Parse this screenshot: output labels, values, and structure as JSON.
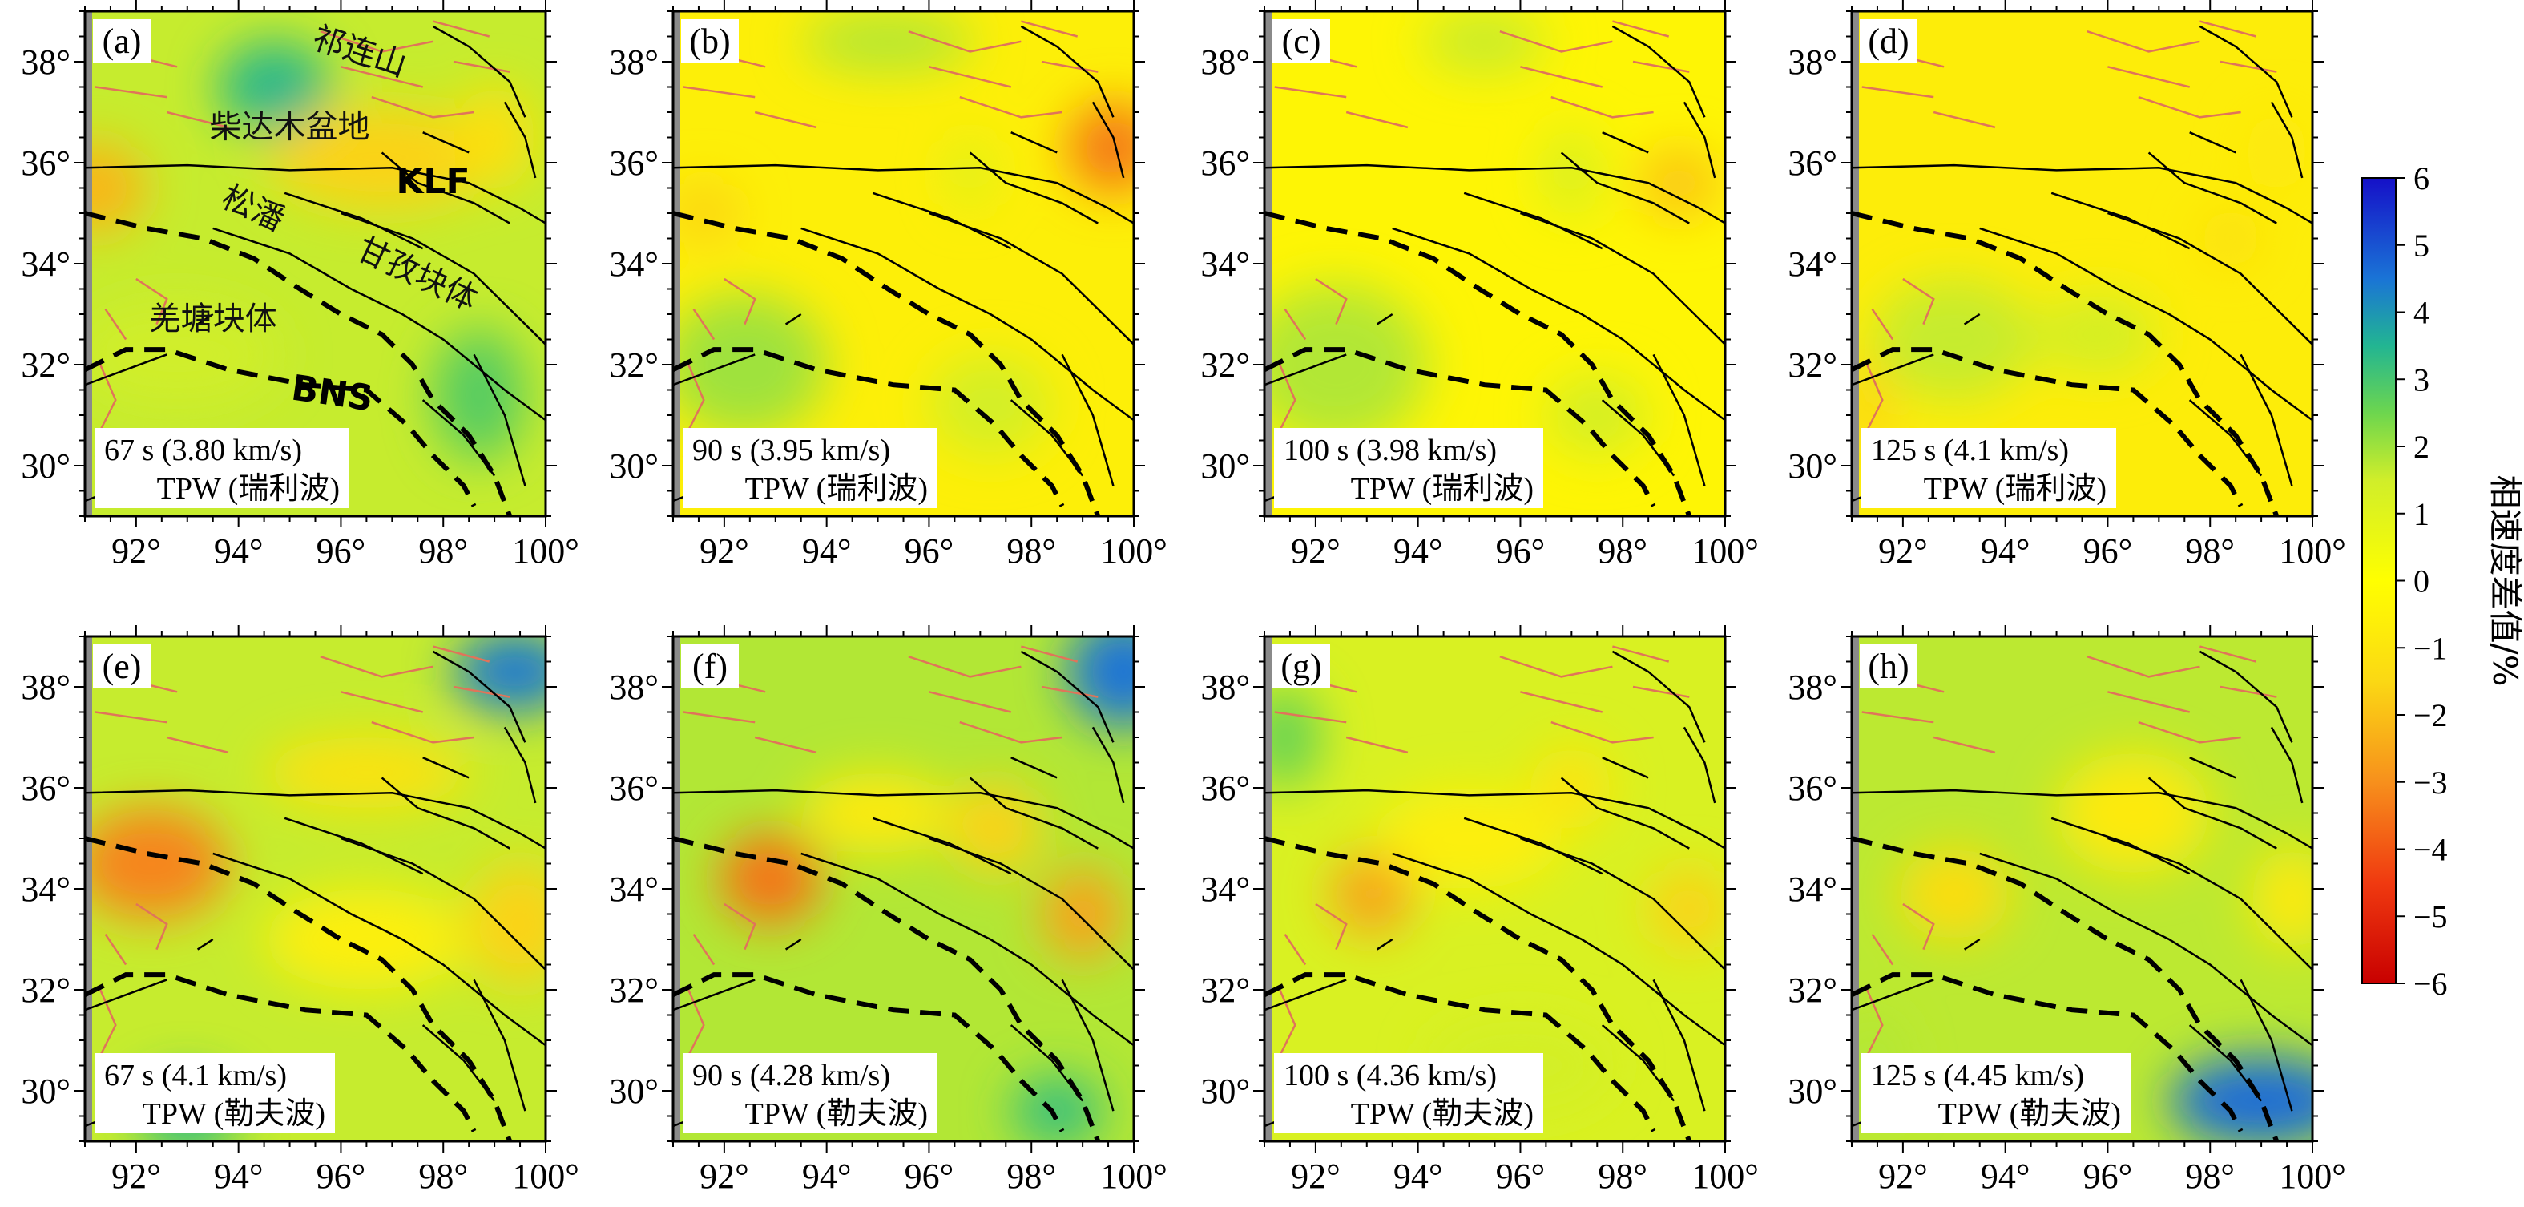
{
  "chart_data": {
    "type": "heatmap",
    "shared_axes": {
      "x_ticks": [
        "92°",
        "94°",
        "96°",
        "98°",
        "100°"
      ],
      "x_values": [
        92,
        94,
        96,
        98,
        100
      ],
      "y_ticks": [
        "30°",
        "32°",
        "34°",
        "36°",
        "38°"
      ],
      "y_values": [
        30,
        32,
        34,
        36,
        38
      ],
      "xlim": [
        91,
        100
      ],
      "ylim": [
        29,
        39
      ]
    },
    "colorbar": {
      "title": "相速度差值/%",
      "range": [
        -6,
        6
      ],
      "ticks": [
        "6",
        "5",
        "4",
        "3",
        "2",
        "1",
        "0",
        "−1",
        "−2",
        "−3",
        "−4",
        "−5",
        "−6"
      ],
      "colors": [
        {
          "v": -6,
          "c": "#c80000"
        },
        {
          "v": -4.5,
          "c": "#f03a10"
        },
        {
          "v": -3,
          "c": "#f7901c"
        },
        {
          "v": -1.5,
          "c": "#fbd814"
        },
        {
          "v": 0,
          "c": "#ffff00"
        },
        {
          "v": 1.5,
          "c": "#d0ee2a"
        },
        {
          "v": 2.5,
          "c": "#6dd64e"
        },
        {
          "v": 3.5,
          "c": "#22b592"
        },
        {
          "v": 4.5,
          "c": "#1a74d6"
        },
        {
          "v": 6,
          "c": "#1510c8"
        }
      ]
    },
    "map_labels": {
      "qilian": "祁连山",
      "qaidam": "柴达木盆地",
      "klf": "KLF",
      "songpan": "松潘",
      "ganzi": "甘孜块体",
      "qiangtang": "羌塘块体",
      "bns": "BNS"
    },
    "panels": [
      {
        "letter": "(a)",
        "period": "67 s (3.80 km/s)",
        "method": "TPW (瑞利波)",
        "background": 1.6,
        "anomalies": [
          [
            94.7,
            37.5,
            1.1,
            0.9,
            3.4
          ],
          [
            91.2,
            35.5,
            1.0,
            0.9,
            -2.2
          ],
          [
            98.7,
            31.4,
            0.9,
            1.3,
            2.8
          ],
          [
            92.8,
            32.2,
            2.0,
            1.0,
            1.5
          ],
          [
            96.8,
            36.1,
            2.2,
            1.0,
            -1.6
          ],
          [
            99.0,
            36.5,
            0.8,
            1.0,
            -1.2
          ]
        ]
      },
      {
        "letter": "(b)",
        "period": "90 s (3.95 km/s)",
        "method": "TPW (瑞利波)",
        "background": -0.6,
        "anomalies": [
          [
            99.6,
            36.3,
            0.9,
            0.9,
            -3.4
          ],
          [
            92.4,
            32.0,
            1.6,
            1.4,
            2.0
          ],
          [
            95.2,
            38.4,
            1.7,
            0.6,
            1.8
          ],
          [
            97.2,
            31.2,
            1.2,
            1.0,
            1.4
          ],
          [
            91.6,
            35.0,
            0.7,
            0.6,
            -1.6
          ],
          [
            96.8,
            35.8,
            0.4,
            0.7,
            1.2
          ]
        ]
      },
      {
        "letter": "(c)",
        "period": "100 s (3.98 km/s)",
        "method": "TPW (瑞利波)",
        "background": -0.4,
        "anomalies": [
          [
            99.1,
            35.6,
            0.8,
            0.7,
            -1.9
          ],
          [
            92.4,
            32.0,
            1.8,
            1.6,
            1.8
          ],
          [
            97.0,
            35.8,
            0.6,
            0.9,
            1.2
          ],
          [
            95.3,
            38.4,
            1.2,
            0.6,
            1.6
          ],
          [
            97.5,
            31.0,
            1.0,
            0.8,
            1.4
          ]
        ]
      },
      {
        "letter": "(d)",
        "period": "125 s (4.1 km/s)",
        "method": "TPW (瑞利波)",
        "background": -0.7,
        "anomalies": [
          [
            93.0,
            32.5,
            1.6,
            1.2,
            1.6
          ],
          [
            95.8,
            32.6,
            1.2,
            0.8,
            1.4
          ],
          [
            98.4,
            34.5,
            0.6,
            0.6,
            -1.2
          ],
          [
            99.3,
            36.2,
            0.6,
            0.8,
            -0.9
          ],
          [
            91.3,
            31.2,
            0.5,
            1.0,
            -1.5
          ]
        ]
      },
      {
        "letter": "(e)",
        "period": "67 s (4.1 km/s)",
        "method": "TPW (勒夫波)",
        "background": 1.6,
        "anomalies": [
          [
            99.4,
            38.3,
            1.2,
            0.8,
            4.4
          ],
          [
            92.3,
            34.5,
            1.5,
            1.1,
            -3.2
          ],
          [
            99.5,
            33.3,
            1.0,
            1.2,
            -1.6
          ],
          [
            96.5,
            36.3,
            2.0,
            0.7,
            -1.1
          ],
          [
            93.0,
            29.5,
            1.0,
            0.8,
            3.2
          ],
          [
            96.5,
            33.0,
            2.0,
            1.0,
            -0.6
          ]
        ]
      },
      {
        "letter": "(f)",
        "period": "90 s (4.28 km/s)",
        "method": "TPW (勒夫波)",
        "background": 1.8,
        "anomalies": [
          [
            99.8,
            38.3,
            1.1,
            1.1,
            4.5
          ],
          [
            92.9,
            34.2,
            1.0,
            0.9,
            -3.5
          ],
          [
            99.0,
            33.5,
            0.8,
            0.9,
            -2.6
          ],
          [
            97.3,
            35.2,
            0.9,
            0.9,
            -1.6
          ],
          [
            98.5,
            29.6,
            0.9,
            0.7,
            3.2
          ],
          [
            95.0,
            35.5,
            1.5,
            0.8,
            -0.8
          ]
        ]
      },
      {
        "letter": "(g)",
        "period": "100 s (4.36 km/s)",
        "method": "TPW (勒夫波)",
        "background": 1.2,
        "anomalies": [
          [
            93.1,
            33.9,
            0.8,
            0.8,
            -2.6
          ],
          [
            99.3,
            33.6,
            0.8,
            0.8,
            -1.6
          ],
          [
            97.0,
            36.0,
            0.8,
            0.8,
            -1.0
          ],
          [
            91.4,
            37.0,
            0.7,
            1.0,
            2.6
          ],
          [
            96.0,
            30.5,
            1.8,
            0.9,
            1.4
          ],
          [
            95.0,
            35.0,
            1.8,
            1.0,
            -0.6
          ]
        ]
      },
      {
        "letter": "(h)",
        "period": "125 s (4.45 km/s)",
        "method": "TPW (勒夫波)",
        "background": 1.7,
        "anomalies": [
          [
            99.0,
            29.8,
            1.8,
            0.9,
            4.6
          ],
          [
            93.0,
            33.9,
            1.1,
            0.9,
            -1.3
          ],
          [
            96.5,
            35.5,
            1.5,
            1.2,
            -0.8
          ],
          [
            99.6,
            33.8,
            0.8,
            1.0,
            -0.8
          ],
          [
            91.4,
            30.5,
            0.6,
            1.0,
            1.8
          ]
        ]
      }
    ]
  }
}
